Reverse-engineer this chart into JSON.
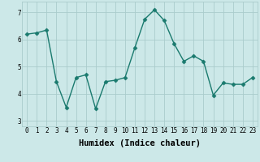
{
  "x": [
    0,
    1,
    2,
    3,
    4,
    5,
    6,
    7,
    8,
    9,
    10,
    11,
    12,
    13,
    14,
    15,
    16,
    17,
    18,
    19,
    20,
    21,
    22,
    23
  ],
  "y": [
    6.2,
    6.25,
    6.35,
    4.45,
    3.5,
    4.6,
    4.7,
    3.45,
    4.45,
    4.5,
    4.6,
    5.7,
    6.75,
    7.1,
    6.7,
    5.85,
    5.2,
    5.4,
    5.2,
    3.95,
    4.4,
    4.35,
    4.35,
    4.6
  ],
  "line_color": "#1a7a6e",
  "marker": "D",
  "markersize": 2.5,
  "linewidth": 1.0,
  "xlabel": "Humidex (Indice chaleur)",
  "xlim": [
    -0.5,
    23.5
  ],
  "ylim": [
    2.8,
    7.4
  ],
  "xticks": [
    0,
    1,
    2,
    3,
    4,
    5,
    6,
    7,
    8,
    9,
    10,
    11,
    12,
    13,
    14,
    15,
    16,
    17,
    18,
    19,
    20,
    21,
    22,
    23
  ],
  "yticks": [
    3,
    4,
    5,
    6,
    7
  ],
  "bg_color": "#cce8e8",
  "grid_color": "#aacccc",
  "tick_fontsize": 5.5,
  "label_fontsize": 7.5
}
